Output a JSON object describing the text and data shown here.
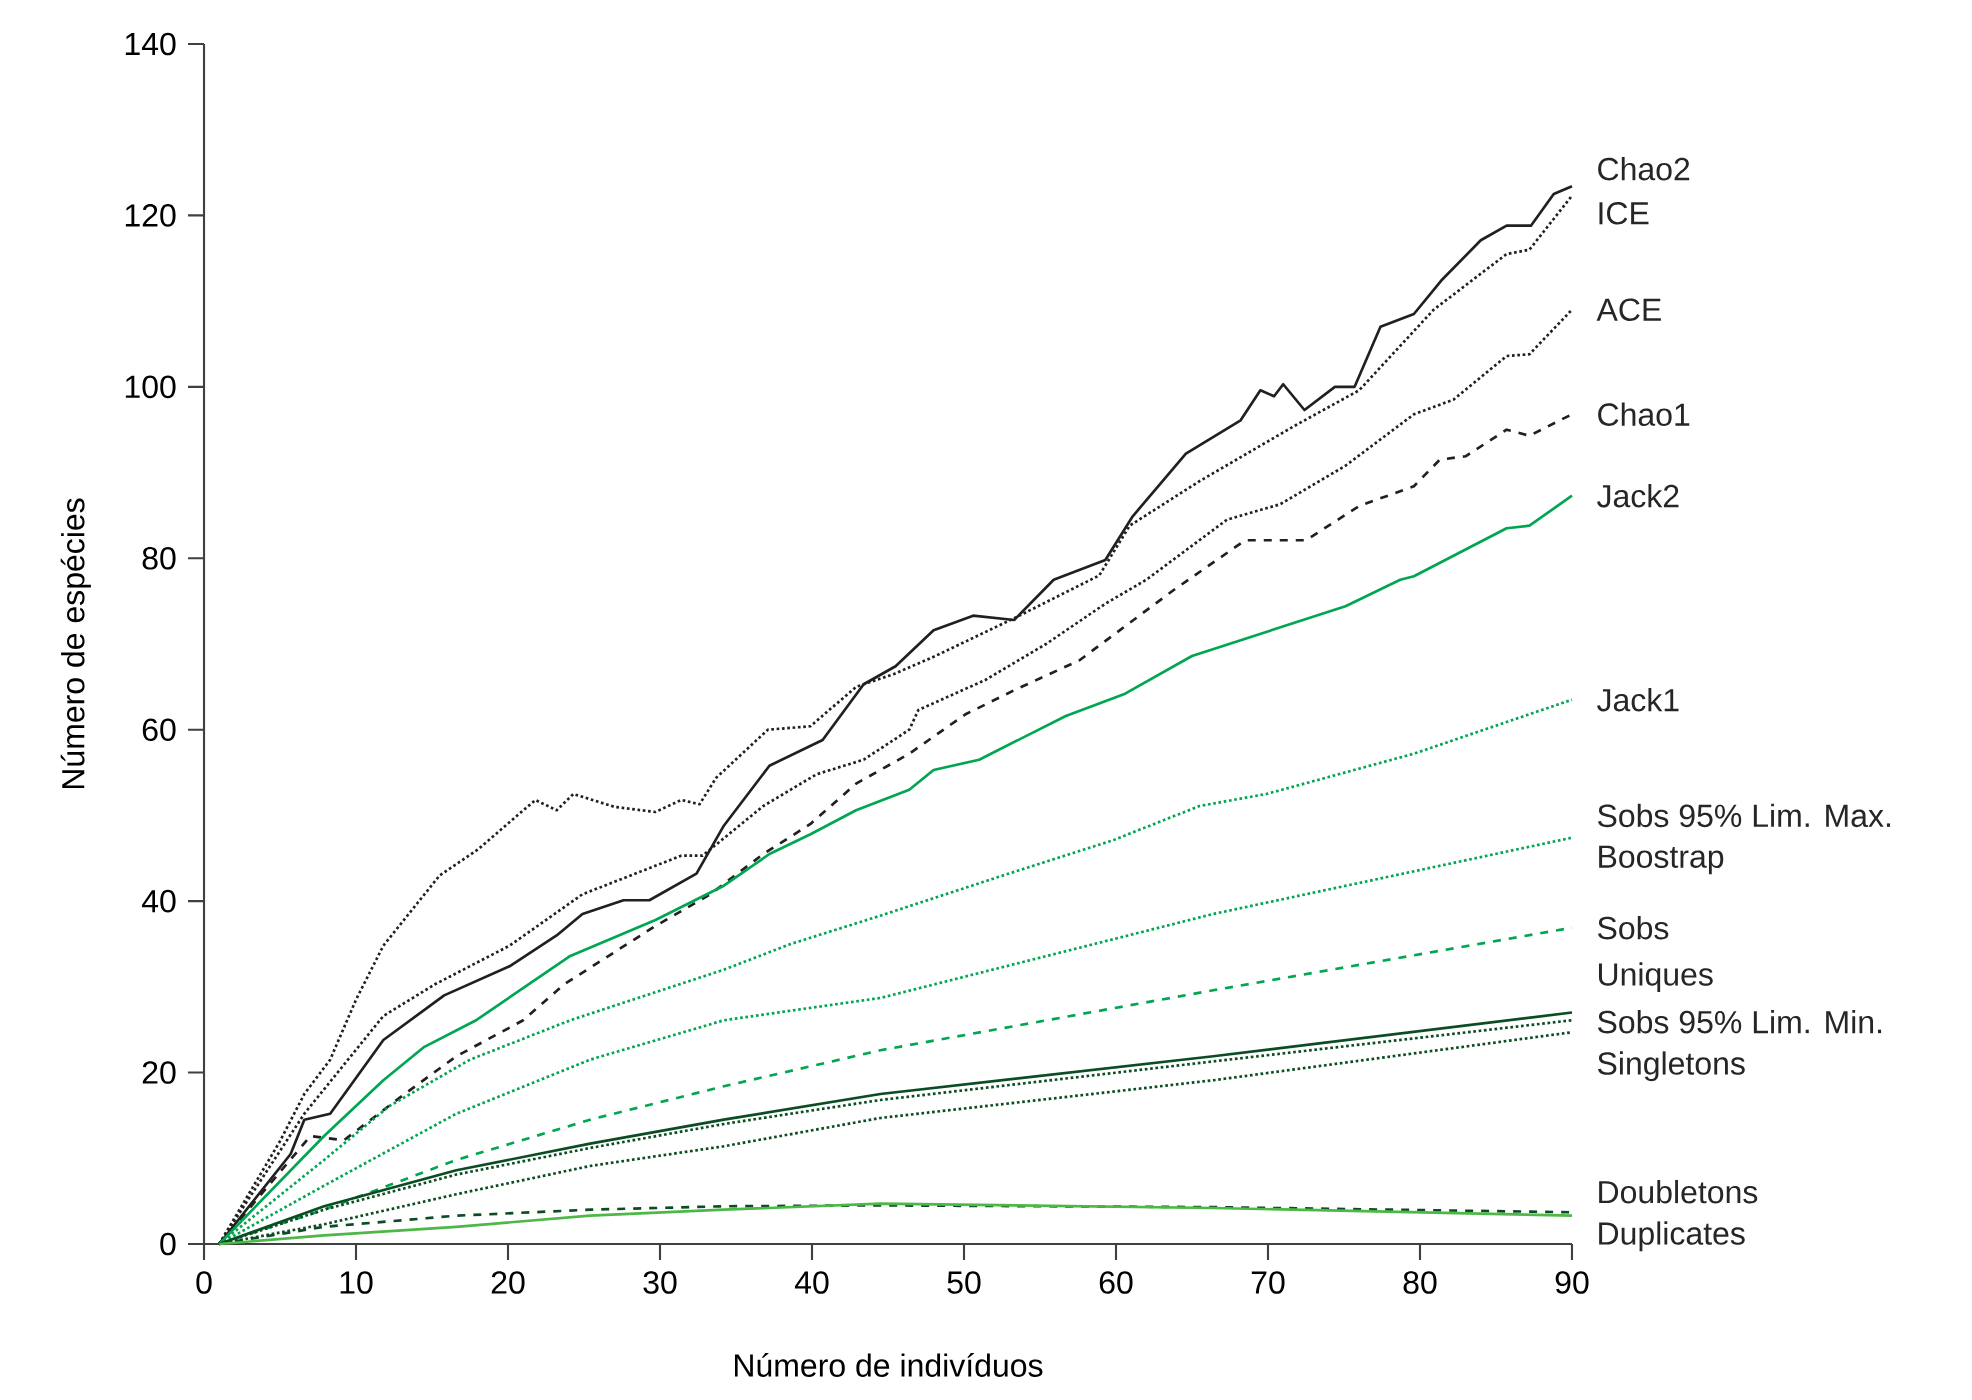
{
  "chart_data": {
    "type": "line",
    "xlabel": "Número de indivíduos",
    "ylabel": "Número de espécies",
    "xlim": [
      0,
      90
    ],
    "ylim": [
      0,
      140
    ],
    "xticks": [
      0,
      10,
      20,
      30,
      40,
      50,
      60,
      70,
      80,
      90
    ],
    "yticks": [
      0,
      20,
      40,
      60,
      80,
      100,
      120,
      140
    ],
    "x": [
      1,
      7.9,
      16.6,
      25.4,
      34.2,
      44.5,
      66.4,
      90
    ],
    "annotations": [
      {
        "text": "Boostrap",
        "x": 90,
        "y": 47.4
      }
    ],
    "series": [
      {
        "name": "Chao2",
        "color": "#231f20",
        "line_style": "solid",
        "x": [
          1,
          5.7,
          6.6,
          8.3,
          11.8,
          15.8,
          20.1,
          23.2,
          24.9,
          27.6,
          29.3,
          32.4,
          34.2,
          37.2,
          40.7,
          43.4,
          45.5,
          48,
          50.6,
          53.3,
          55.9,
          59.3,
          61.1,
          64.6,
          68.2,
          69.5,
          70.4,
          71,
          72.4,
          74.4,
          75.7,
          77.4,
          79.6,
          81.4,
          84,
          85.7,
          87.3,
          88.8,
          90
        ],
        "values": [
          0,
          10.5,
          14.5,
          15.2,
          23.8,
          29,
          32.4,
          36,
          38.5,
          40.1,
          40.1,
          43.2,
          48.8,
          55.8,
          58.8,
          65.3,
          67.4,
          71.6,
          73.3,
          72.8,
          77.5,
          79.8,
          84.9,
          92.2,
          96.1,
          99.6,
          98.9,
          100.3,
          97.3,
          100,
          100,
          107,
          108.5,
          112.4,
          117.1,
          118.8,
          118.8,
          122.5,
          123.4
        ]
      },
      {
        "name": "ICE",
        "color": "#231f20",
        "line_style": "dotted",
        "x": [
          1,
          5,
          6.6,
          8.3,
          10,
          11.8,
          15.5,
          18,
          21.8,
          23.2,
          24.3,
          27,
          29.7,
          31.4,
          32.6,
          33.7,
          37.1,
          39.9,
          42.9,
          45.4,
          48,
          53.3,
          58.9,
          60.9,
          65.5,
          71.7,
          76,
          80.9,
          85.7,
          87.2,
          90
        ],
        "values": [
          0,
          12,
          17.5,
          21.5,
          28.5,
          34.8,
          43,
          46,
          51.8,
          50.6,
          52.5,
          51,
          50.4,
          51.8,
          51.3,
          54.4,
          60,
          60.4,
          65,
          66.5,
          68.5,
          73,
          78,
          83.8,
          89,
          95.4,
          99.6,
          109,
          115.5,
          116,
          122.3
        ]
      },
      {
        "name": "ACE",
        "color": "#231f20",
        "line_style": "dotted",
        "x": [
          1,
          6.6,
          11.8,
          15.2,
          20.1,
          24.9,
          31.4,
          32.8,
          36.8,
          40.3,
          43.4,
          46.4,
          47,
          51.4,
          55.4,
          59.3,
          62,
          67.3,
          70.8,
          75.1,
          79.6,
          82.2,
          85.7,
          87.2,
          90
        ],
        "values": [
          0,
          15.2,
          26.6,
          30.3,
          34.8,
          40.8,
          45.3,
          45.3,
          51.1,
          54.8,
          56.5,
          60,
          62.3,
          65.8,
          70,
          74.7,
          77.5,
          84.5,
          86.3,
          90.8,
          96.8,
          98.5,
          103.6,
          103.8,
          109
        ]
      },
      {
        "name": "Chao1",
        "color": "#231f20",
        "line_style": "dashed",
        "x": [
          1,
          7,
          9.2,
          13.2,
          16.6,
          21,
          23.7,
          29.7,
          33.3,
          36.8,
          39.9,
          42.9,
          46.4,
          50.1,
          53.3,
          57.6,
          63.8,
          68.5,
          72.5,
          76,
          79.6,
          81.3,
          83,
          85.7,
          87.2,
          90
        ],
        "values": [
          0,
          12.6,
          12.1,
          17.5,
          21.9,
          26.1,
          30.3,
          37.1,
          40.8,
          45.5,
          49,
          53.7,
          57.2,
          61.8,
          64.6,
          68.1,
          76.3,
          82.1,
          82.1,
          86.1,
          88.4,
          91.5,
          91.9,
          95,
          94.3,
          96.8
        ]
      },
      {
        "name": "Jack2",
        "color": "#00a651",
        "line_style": "solid",
        "x": [
          1,
          7.9,
          11.8,
          14.5,
          17.9,
          24.1,
          29.7,
          34.2,
          37.2,
          39.9,
          42.9,
          46.4,
          48,
          51,
          56.7,
          60.6,
          65,
          75.1,
          78.7,
          79.6,
          85.7,
          87.2,
          90
        ],
        "values": [
          0,
          12.6,
          19.1,
          23,
          26.1,
          33.6,
          37.8,
          41.8,
          45.5,
          47.8,
          50.6,
          53,
          55.3,
          56.5,
          61.6,
          64.2,
          68.6,
          74.4,
          77.5,
          77.9,
          83.5,
          83.8,
          87.3
        ]
      },
      {
        "name": "Jack1",
        "color": "#00a651",
        "line_style": "dotted",
        "x": [
          1,
          7.9,
          12.2,
          17.5,
          24.1,
          34.2,
          38.6,
          44.5,
          52.4,
          59.8,
          65.5,
          69.9,
          79.6,
          90
        ],
        "values": [
          0,
          9.8,
          16.1,
          21.5,
          26.1,
          32,
          35,
          38.3,
          42.9,
          47.1,
          51.1,
          52.5,
          57.2,
          63.5
        ]
      },
      {
        "name": "Sobs 95% Lim. Max.",
        "color": "#00a651",
        "line_style": "dotted",
        "values": [
          0,
          6.8,
          15.2,
          21.5,
          26.1,
          28.7,
          38.5,
          47.4
        ]
      },
      {
        "name": "Sobs",
        "color": "#00a651",
        "line_style": "dashed",
        "values": [
          0,
          4,
          9.8,
          14.5,
          18.4,
          22.6,
          29.6,
          36.9
        ]
      },
      {
        "name": "Uniques",
        "color": "#0b4d22",
        "line_style": "solid",
        "values": [
          0,
          4.4,
          8.6,
          11.7,
          14.5,
          17.5,
          21.9,
          27
        ]
      },
      {
        "name": "Sobs 95% Lim. Min.",
        "color": "#0b4d22",
        "line_style": "dotted",
        "values": [
          0,
          4,
          8.1,
          11.2,
          14,
          16.8,
          21.3,
          26.1
        ]
      },
      {
        "name": "Singletons",
        "color": "#0b4d22",
        "line_style": "dotted",
        "values": [
          0,
          2.3,
          5.8,
          9.1,
          11.4,
          14.7,
          19.1,
          24.7
        ]
      },
      {
        "name": "Doubletons",
        "color": "#0b4d22",
        "line_style": "dashed",
        "values": [
          0,
          2,
          3.3,
          4,
          4.4,
          4.5,
          4.3,
          3.7
        ]
      },
      {
        "name": "Duplicates",
        "color": "#4db848",
        "line_style": "solid",
        "values": [
          0,
          1,
          2,
          3.3,
          4,
          4.7,
          4.2,
          3.3
        ]
      }
    ]
  }
}
